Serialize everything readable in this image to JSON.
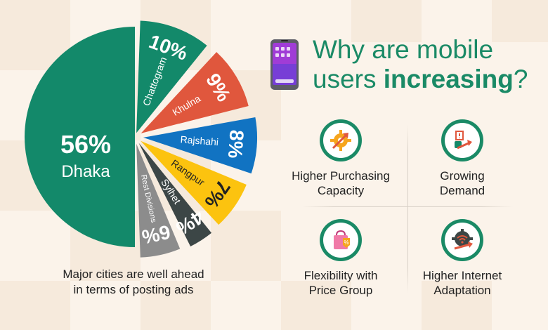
{
  "chart_data": {
    "type": "pie",
    "slices": [
      {
        "label": "Dhaka",
        "value": 56,
        "display": "56%",
        "color": "#13896a"
      },
      {
        "label": "Chattogram",
        "value": 10,
        "display": "10%",
        "color": "#13896a"
      },
      {
        "label": "Khulna",
        "value": 9,
        "display": "9%",
        "color": "#e0573d"
      },
      {
        "label": "Rajshahi",
        "value": 8,
        "display": "8%",
        "color": "#1173c2"
      },
      {
        "label": "Rangpur",
        "value": 7,
        "display": "7%",
        "color": "#fcc30f"
      },
      {
        "label": "Sylhet",
        "value": 4,
        "display": "4%",
        "color": "#3c4646"
      },
      {
        "label": "Rest Divisions",
        "value": 6,
        "display": "6%",
        "color": "#8c8c8c"
      }
    ],
    "caption": [
      "Major cities are well ahead",
      "in terms of posting ads"
    ]
  },
  "header": {
    "title_part1": "Why are mobile",
    "title_part2": "users ",
    "title_bold": "increasing",
    "title_end": "?"
  },
  "features": [
    {
      "label1": "Higher Purchasing",
      "label2": "Capacity",
      "icon": "gear-arrow-icon"
    },
    {
      "label1": "Growing",
      "label2": "Demand",
      "icon": "growth-arrow-icon"
    },
    {
      "label1": "Flexibility with",
      "label2": "Price Group",
      "icon": "shopping-bag-percent-icon"
    },
    {
      "label1": "Higher Internet",
      "label2": "Adaptation",
      "icon": "wifi-gear-icon"
    }
  ],
  "colors": {
    "accent": "#1a8a66",
    "background": "#fbf3ea"
  }
}
